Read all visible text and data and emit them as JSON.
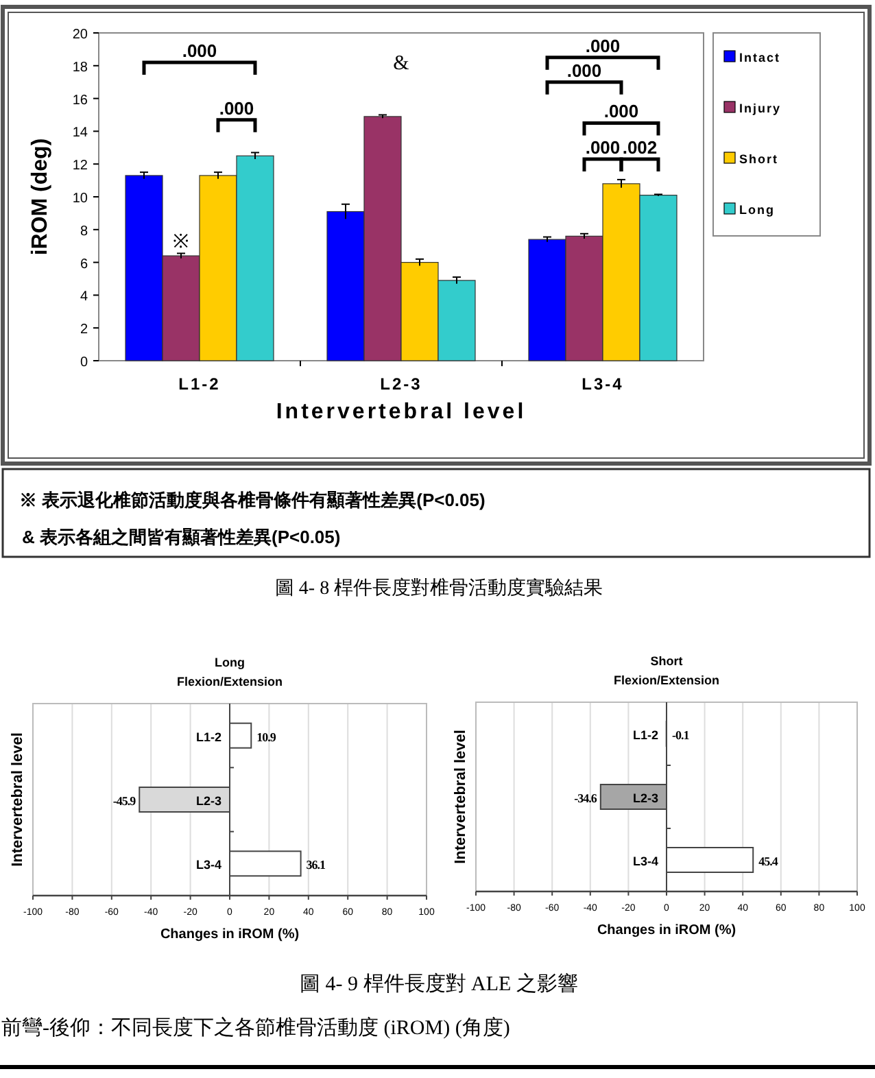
{
  "chart_data": [
    {
      "type": "bar",
      "ylabel": "iROM (deg)",
      "xlabel": "Intervertebral level",
      "categories": [
        "L1-2",
        "L2-3",
        "L3-4"
      ],
      "ylim": [
        0,
        20
      ],
      "yticks": [
        0,
        2,
        4,
        6,
        8,
        10,
        12,
        14,
        16,
        18,
        20
      ],
      "legend": "right",
      "series": [
        {
          "name": "Intact",
          "color": "#0000ff",
          "values": [
            11.3,
            9.1,
            7.4
          ],
          "errors": [
            0.2,
            0.45,
            0.15
          ]
        },
        {
          "name": "Injury",
          "color": "#993366",
          "values": [
            6.4,
            14.9,
            7.6
          ],
          "errors": [
            0.15,
            0.1,
            0.15
          ]
        },
        {
          "name": "Short",
          "color": "#ffcc00",
          "values": [
            11.3,
            6.0,
            10.8
          ],
          "errors": [
            0.2,
            0.2,
            0.25
          ]
        },
        {
          "name": "Long",
          "color": "#33cccc",
          "values": [
            12.5,
            4.9,
            10.1
          ],
          "errors": [
            0.2,
            0.2,
            0.05
          ]
        }
      ],
      "annotations": [
        ".000",
        ".000",
        ".000",
        ".000",
        ".000",
        ".000",
        ".002",
        {
          "text": "※",
          "x": "L1-2",
          "y": 6.4
        },
        "&",
        "※ 表示退化椎節活動度與各椎骨條件有顯著性差異(P<0.05)",
        "& 表示各組之間皆有顯著性差異(P<0.05)",
        "圖 4- 8 桿件長度對椎骨活動度實驗結果"
      ]
    },
    {
      "type": "bar",
      "orientation": "horizontal",
      "title": "Long",
      "subtitle": "Flexion/Extension",
      "xlabel": "Changes in iROM (%)",
      "ylabel": "Intervertebral level",
      "categories": [
        "L1-2",
        "L2-3",
        "L3-4"
      ],
      "values": [
        10.9,
        -45.9,
        36.1
      ],
      "colors": [
        "#ffffff",
        "#d9d9d9",
        "#ffffff"
      ],
      "xlim": [
        -100,
        100
      ],
      "xticks": [
        -100,
        -80,
        -60,
        -40,
        -20,
        0,
        20,
        40,
        60,
        80,
        100
      ],
      "grid": "x",
      "data_labels": true
    },
    {
      "type": "bar",
      "orientation": "horizontal",
      "title": "Short",
      "subtitle": "Flexion/Extension",
      "xlabel": "Changes in iROM (%)",
      "ylabel": "Intervertebral level",
      "categories": [
        "L1-2",
        "L2-3",
        "L3-4"
      ],
      "values": [
        -0.1,
        -34.6,
        45.4
      ],
      "colors": [
        "#ffffff",
        "#a6a6a6",
        "#ffffff"
      ],
      "xlim": [
        -100,
        100
      ],
      "xticks": [
        -100,
        -80,
        -60,
        -40,
        -20,
        0,
        20,
        40,
        60,
        80,
        100
      ],
      "grid": "x",
      "data_labels": true,
      "annotations": [
        "圖 4- 9 桿件長度對 ALE 之影響",
        "前彎-後仰：不同長度下之各節椎骨活動度 (iROM) (角度)"
      ]
    }
  ]
}
